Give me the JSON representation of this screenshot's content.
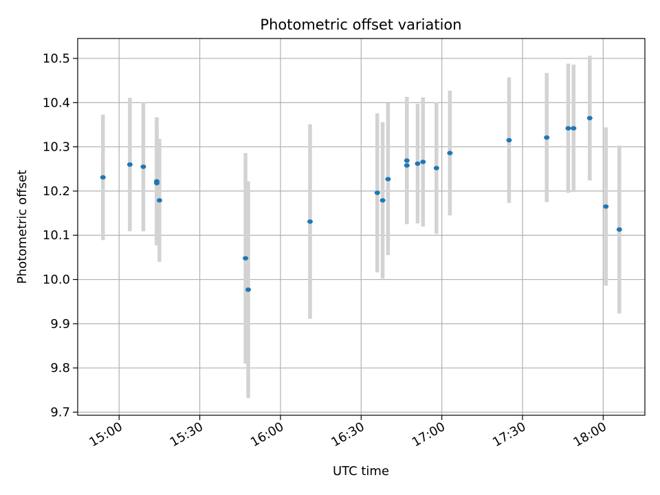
{
  "chart_data": {
    "type": "scatter",
    "title": "Photometric offset variation",
    "xlabel": "UTC time",
    "ylabel": "Photometric offset",
    "x_ticks": [
      "15:00",
      "15:30",
      "16:00",
      "16:30",
      "17:00",
      "17:30",
      "18:00"
    ],
    "x_tick_minutes": [
      900,
      930,
      960,
      990,
      1020,
      1050,
      1080
    ],
    "xlim_minutes": [
      884.6,
      1095.5
    ],
    "y_ticks": [
      "9.7",
      "9.8",
      "9.9",
      "10.0",
      "10.1",
      "10.2",
      "10.3",
      "10.4",
      "10.5"
    ],
    "y_tick_values": [
      9.7,
      9.8,
      9.9,
      10.0,
      10.1,
      10.2,
      10.3,
      10.4,
      10.5
    ],
    "ylim": [
      9.693,
      10.545
    ],
    "grid": true,
    "marker_color": "#1f77b4",
    "errorbar_color": "#d3d3d3",
    "points": [
      {
        "t": "14:54",
        "y": 10.231,
        "err": 0.142
      },
      {
        "t": "15:04",
        "y": 10.26,
        "err": 0.151
      },
      {
        "t": "15:09",
        "y": 10.255,
        "err": 0.146
      },
      {
        "t": "15:14",
        "y": 10.222,
        "err": 0.145
      },
      {
        "t": "15:14",
        "y": 10.218,
        "err": 0.137
      },
      {
        "t": "15:15",
        "y": 10.179,
        "err": 0.139
      },
      {
        "t": "15:47",
        "y": 10.048,
        "err": 0.238
      },
      {
        "t": "15:48",
        "y": 9.977,
        "err": 0.245
      },
      {
        "t": "16:11",
        "y": 10.131,
        "err": 0.22
      },
      {
        "t": "16:36",
        "y": 10.196,
        "err": 0.18
      },
      {
        "t": "16:38",
        "y": 10.179,
        "err": 0.177
      },
      {
        "t": "16:40",
        "y": 10.227,
        "err": 0.172
      },
      {
        "t": "16:47",
        "y": 10.258,
        "err": 0.128
      },
      {
        "t": "16:47",
        "y": 10.269,
        "err": 0.144
      },
      {
        "t": "16:51",
        "y": 10.262,
        "err": 0.135
      },
      {
        "t": "16:53",
        "y": 10.266,
        "err": 0.146
      },
      {
        "t": "16:58",
        "y": 10.252,
        "err": 0.149
      },
      {
        "t": "17:03",
        "y": 10.286,
        "err": 0.141
      },
      {
        "t": "17:25",
        "y": 10.315,
        "err": 0.142
      },
      {
        "t": "17:39",
        "y": 10.321,
        "err": 0.146
      },
      {
        "t": "17:47",
        "y": 10.342,
        "err": 0.146
      },
      {
        "t": "17:49",
        "y": 10.342,
        "err": 0.144
      },
      {
        "t": "17:55",
        "y": 10.365,
        "err": 0.141
      },
      {
        "t": "18:01",
        "y": 10.165,
        "err": 0.179
      },
      {
        "t": "18:06",
        "y": 10.113,
        "err": 0.19
      }
    ]
  }
}
